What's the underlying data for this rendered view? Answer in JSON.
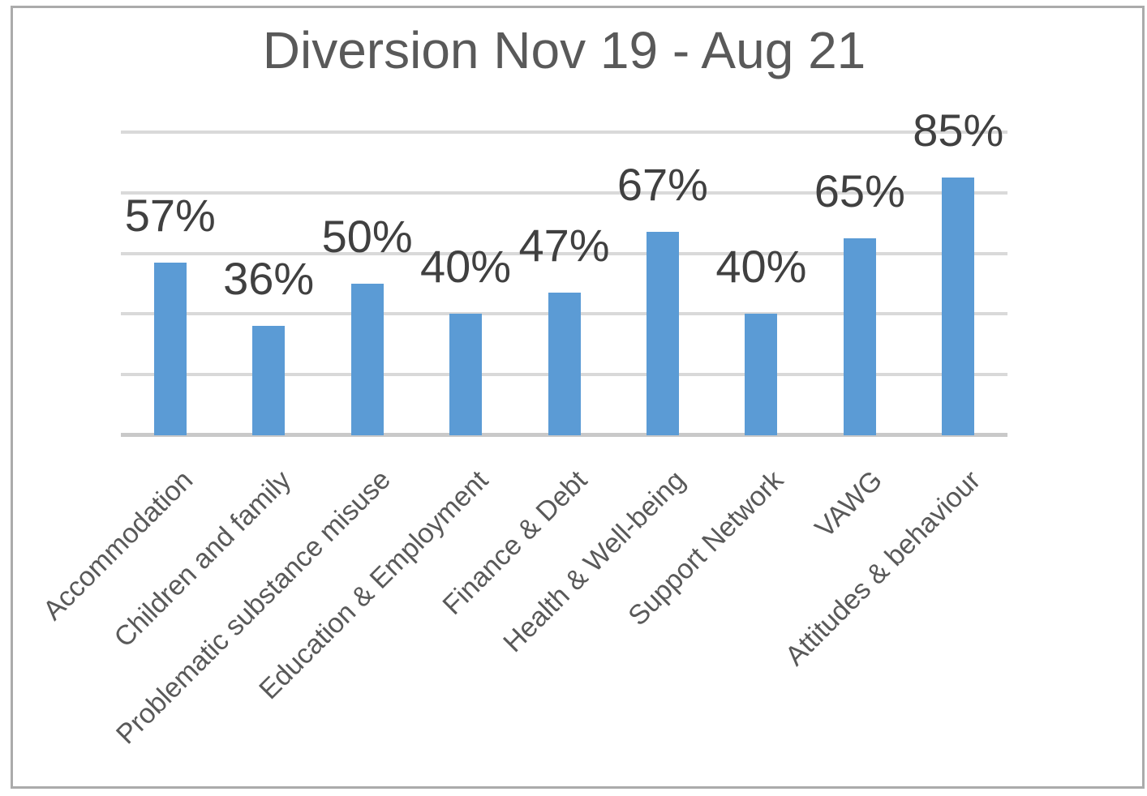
{
  "chart_data": {
    "type": "bar",
    "title": "Diversion Nov 19 - Aug 21",
    "categories": [
      "Accommodation",
      "Children and family",
      "Problematic substance misuse",
      "Education & Employment",
      "Finance & Debt",
      "Health & Well-being",
      "Support Network",
      "VAWG",
      "Attitudes & behaviour"
    ],
    "values": [
      57,
      36,
      50,
      40,
      47,
      67,
      40,
      65,
      85
    ],
    "data_labels": [
      "57%",
      "36%",
      "50%",
      "40%",
      "47%",
      "67%",
      "40%",
      "65%",
      "85%"
    ],
    "value_suffix": "%",
    "xlabel": "",
    "ylabel": "",
    "ylim": [
      0,
      100
    ],
    "gridline_step_pct": 20,
    "grid": true,
    "legend": false,
    "y_tick_labels_visible": false,
    "x_label_rotation_deg": 45,
    "colors": {
      "bar": "#5b9bd5",
      "gridline": "#d9d9d9",
      "axis_line": "#c9c9c9",
      "title_text": "#595959",
      "data_label_text": "#404040",
      "category_label_text": "#595959",
      "frame_border": "#ababab",
      "background": "#ffffff"
    }
  }
}
